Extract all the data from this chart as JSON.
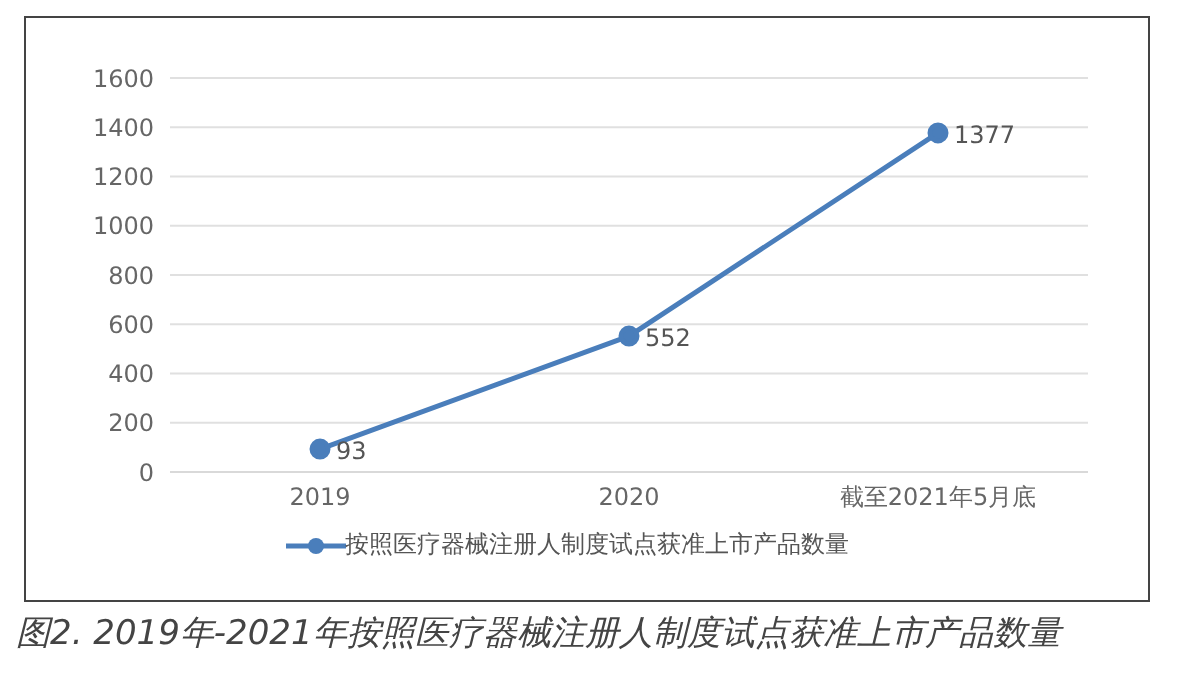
{
  "chart_data": {
    "type": "line",
    "title": "图2. 2019年-2021年按照医疗器械注册人制度试点获准上市产品数量",
    "categories": [
      "2019",
      "2020",
      "截至2021年5月底"
    ],
    "series": [
      {
        "name": "按照医疗器械注册人制度试点获准上市产品数量",
        "color": "#4a7ebb",
        "values": [
          93,
          552,
          1377
        ]
      }
    ],
    "ylim": [
      0,
      1600
    ],
    "yticks": [
      0,
      200,
      400,
      600,
      800,
      1000,
      1200,
      1400,
      1600
    ],
    "grid": "y",
    "legend": "bottom",
    "marker": "circle",
    "line_style": "solid",
    "data_labels": true
  }
}
